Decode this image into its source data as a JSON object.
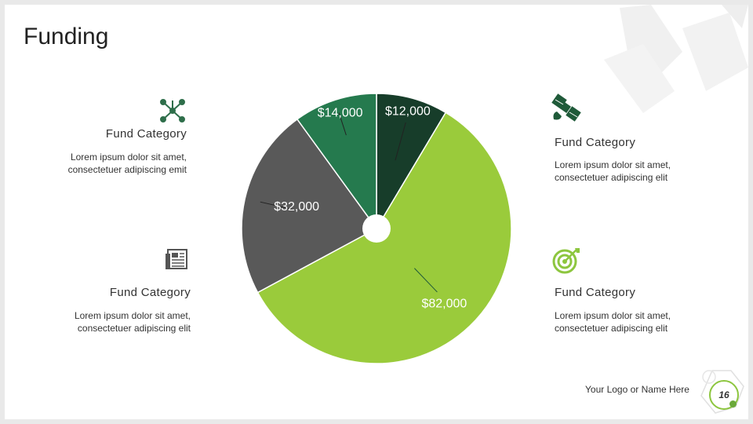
{
  "slide": {
    "title": "Funding"
  },
  "funds": [
    {
      "title": "Fund Category",
      "desc1": "Lorem ipsum dolor sit amet,",
      "desc2": "consectetuer adipiscing emit",
      "icon": "network-icon"
    },
    {
      "title": "Fund Category",
      "desc1": "Lorem ipsum dolor sit amet,",
      "desc2": "consectetuer adipiscing elit",
      "icon": "satellite-icon"
    },
    {
      "title": "Fund Category",
      "desc1": "Lorem ipsum dolor sit amet,",
      "desc2": "consectetuer adipiscing elit",
      "icon": "newspaper-icon"
    },
    {
      "title": "Fund Category",
      "desc1": "Lorem ipsum dolor sit amet,",
      "desc2": "consectetuer adipiscing elit",
      "icon": "target-icon"
    }
  ],
  "chart_data": {
    "type": "pie",
    "title": "",
    "categories": [
      "$12,000",
      "$82,000",
      "$32,000",
      "$14,000"
    ],
    "values": [
      12000,
      82000,
      32000,
      14000
    ],
    "colors": [
      "#173d2a",
      "#9acb3b",
      "#595959",
      "#257a4e"
    ],
    "label_colors": [
      "#ffffff",
      "#ffffff",
      "#ffffff",
      "#ffffff"
    ],
    "start_angle_deg": 0,
    "direction": "clockwise"
  },
  "footer": {
    "logo_text": "Your Logo or Name Here",
    "page_number": "16"
  },
  "colors": {
    "accent": "#8dc63f",
    "dark_green": "#1f5a39"
  }
}
